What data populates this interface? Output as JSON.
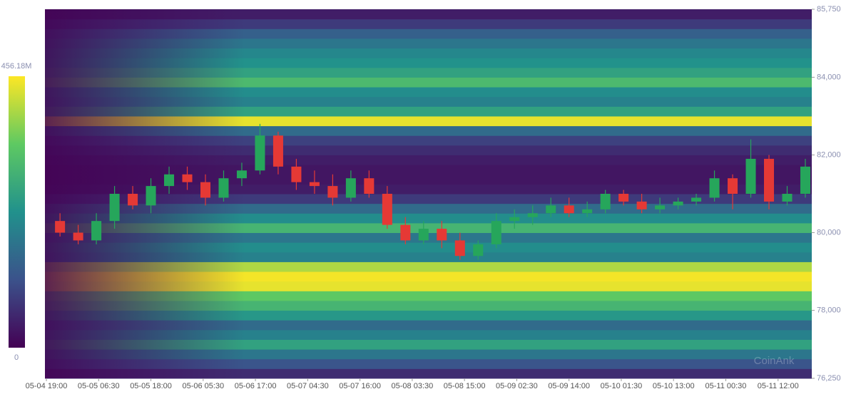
{
  "chart_data": {
    "type": "heatmap",
    "watermark": "CoinAnk",
    "colorbar": {
      "min": 0,
      "max": {
        "value": 456.18,
        "label": "456.18M"
      },
      "colors": [
        "#440154",
        "#3b528b",
        "#21918c",
        "#5ec962",
        "#fde725"
      ]
    },
    "ylim": [
      76250,
      85750
    ],
    "yticks": [
      {
        "value": 76250,
        "label": "76,250"
      },
      {
        "value": 78000,
        "label": "78,000"
      },
      {
        "value": 80000,
        "label": "80,000"
      },
      {
        "value": 82000,
        "label": "82,000"
      },
      {
        "value": 84000,
        "label": "84,000"
      },
      {
        "value": 85750,
        "label": "85,750"
      }
    ],
    "xlim": [
      "05-04 18:41",
      "05-11 19:25"
    ],
    "xticks": [
      "05-04 19:00",
      "05-05 06:30",
      "05-05 18:00",
      "05-06 05:30",
      "05-06 17:00",
      "05-07 04:30",
      "05-07 16:00",
      "05-08 03:30",
      "05-08 15:00",
      "05-09 02:30",
      "05-09 14:00",
      "05-10 01:30",
      "05-10 13:00",
      "05-11 00:30",
      "05-11 12:00"
    ],
    "heatmap": {
      "levels": [
        76250,
        76500,
        76750,
        77000,
        77250,
        77500,
        77750,
        78000,
        78250,
        78500,
        78750,
        79000,
        79250,
        79500,
        79750,
        80000,
        80250,
        80500,
        80750,
        81000,
        81250,
        81500,
        81750,
        82000,
        82250,
        82500,
        82750,
        83000,
        83250,
        83500,
        83750,
        84000,
        84250,
        84500,
        84750,
        85000,
        85250,
        85500,
        85750
      ],
      "values": [
        60,
        120,
        180,
        260,
        200,
        160,
        240,
        300,
        340,
        440,
        450,
        400,
        200,
        220,
        180,
        300,
        220,
        160,
        80,
        40,
        30,
        30,
        40,
        60,
        90,
        160,
        440,
        260,
        200,
        220,
        310,
        260,
        230,
        210,
        180,
        140,
        80,
        40
      ]
    },
    "candles": {
      "up_color": "#26a65b",
      "down_color": "#e53935",
      "x": [
        "05-04 20:00",
        "05-05 00:00",
        "05-05 04:00",
        "05-05 08:00",
        "05-05 12:00",
        "05-05 16:00",
        "05-05 20:00",
        "05-06 00:00",
        "05-06 04:00",
        "05-06 08:00",
        "05-06 12:00",
        "05-06 16:00",
        "05-06 20:00",
        "05-07 00:00",
        "05-07 04:00",
        "05-07 08:00",
        "05-07 12:00",
        "05-07 16:00",
        "05-07 20:00",
        "05-08 00:00",
        "05-08 04:00",
        "05-08 08:00",
        "05-08 12:00",
        "05-08 16:00",
        "05-08 20:00",
        "05-09 00:00",
        "05-09 04:00",
        "05-09 08:00",
        "05-09 12:00",
        "05-09 16:00",
        "05-09 20:00",
        "05-10 00:00",
        "05-10 04:00",
        "05-10 08:00",
        "05-10 12:00",
        "05-10 16:00",
        "05-10 20:00",
        "05-11 00:00",
        "05-11 04:00",
        "05-11 08:00",
        "05-11 12:00",
        "05-11 16:00"
      ],
      "open": [
        80300,
        80000,
        79800,
        80300,
        81000,
        80700,
        81200,
        81500,
        81300,
        80900,
        81400,
        81600,
        82500,
        81700,
        81300,
        81200,
        80900,
        81400,
        81000,
        80200,
        79800,
        80100,
        79800,
        79400,
        79700,
        80300,
        80400,
        80500,
        80700,
        80500,
        80600,
        81000,
        80800,
        80600,
        80700,
        80800,
        80900,
        81400,
        81000,
        81900,
        80800,
        81000
      ],
      "high": [
        80500,
        80200,
        80500,
        81200,
        81200,
        81400,
        81700,
        81700,
        81500,
        81600,
        81800,
        82800,
        82600,
        81900,
        81600,
        81500,
        81600,
        81600,
        81200,
        80400,
        80300,
        80300,
        80000,
        79800,
        80500,
        80600,
        80700,
        80900,
        80900,
        80800,
        81100,
        81100,
        81000,
        80900,
        80900,
        81000,
        81600,
        81500,
        82400,
        82000,
        81200,
        81900
      ],
      "low": [
        79900,
        79700,
        79700,
        80100,
        80600,
        80500,
        81000,
        81100,
        80700,
        80800,
        81200,
        81500,
        81500,
        81100,
        81000,
        80700,
        80800,
        80900,
        80100,
        79700,
        79700,
        79600,
        79300,
        79300,
        79600,
        80100,
        80200,
        80400,
        80400,
        80400,
        80500,
        80700,
        80500,
        80500,
        80600,
        80700,
        80800,
        80600,
        80900,
        80600,
        80700,
        80900
      ],
      "close": [
        80000,
        79800,
        80300,
        81000,
        80700,
        81200,
        81500,
        81300,
        80900,
        81400,
        81600,
        82500,
        81700,
        81300,
        81200,
        80900,
        81400,
        81000,
        80200,
        79800,
        80100,
        79800,
        79400,
        79700,
        80300,
        80400,
        80500,
        80700,
        80500,
        80600,
        81000,
        80800,
        80600,
        80700,
        80800,
        80900,
        81400,
        81000,
        81900,
        80800,
        81000,
        81700
      ]
    }
  }
}
